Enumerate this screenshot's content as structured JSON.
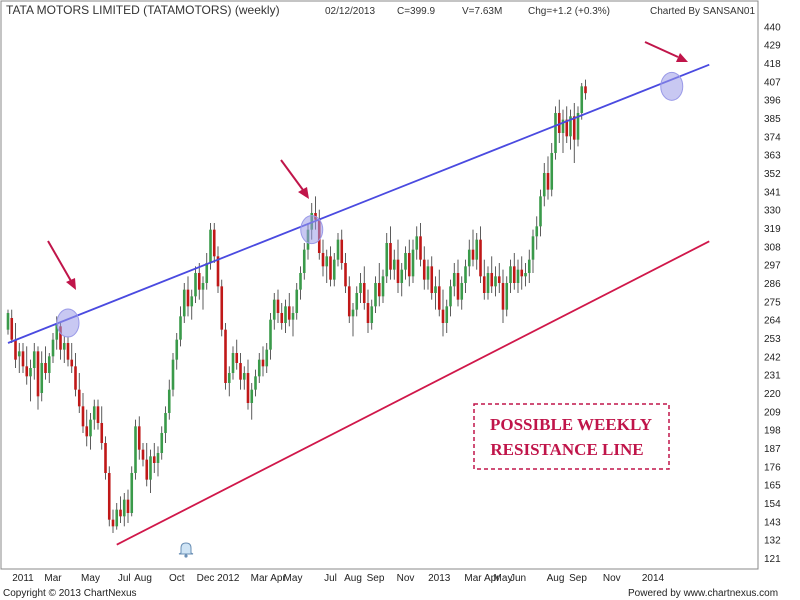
{
  "header": {
    "title": "TATA MOTORS LIMITED (TATAMOTORS) (weekly)",
    "date": "02/12/2013",
    "close": "C=399.9",
    "volume": "V=7.63M",
    "change": "Chg=+1.2 (+0.3%)",
    "charted_by": "Charted By SANSAN01"
  },
  "footer": {
    "copyright": "Copyright © 2013 ChartNexus",
    "powered_by": "Powered by www.chartnexus.com"
  },
  "annotation": {
    "line1": "POSSIBLE WEEKLY",
    "line2": "RESISTANCE LINE"
  },
  "colors": {
    "up": "#3a9a4a",
    "down": "#c01818",
    "resistance": "#4a4ae0",
    "support": "#d0174a",
    "arrow": "#c0154a",
    "highlight": "#9a9ae8"
  },
  "chart_data": {
    "type": "candlestick",
    "ylim": [
      115,
      445
    ],
    "y_ticks": [
      440,
      429,
      418,
      407,
      396,
      385,
      374,
      363,
      352,
      341,
      330,
      319,
      308,
      297,
      286,
      275,
      264,
      253,
      242,
      231,
      220,
      209,
      198,
      187,
      176,
      165,
      154,
      143,
      132,
      121
    ],
    "x_ticks": [
      "2011",
      "Mar",
      "May",
      "Jul",
      "Aug",
      "Oct",
      "Dec 2012",
      "Mar",
      "Apr",
      "May",
      "Jul",
      "Aug",
      "Sep",
      "Nov",
      "2013",
      "Mar",
      "Apr",
      "May",
      "Jun",
      "Aug",
      "Sep",
      "Nov",
      "2014"
    ],
    "x_tick_index": [
      4,
      12,
      22,
      31,
      36,
      45,
      56,
      67,
      72,
      76,
      86,
      92,
      98,
      106,
      115,
      124,
      129,
      132,
      136,
      146,
      152,
      161,
      172
    ],
    "candles": [
      {
        "o": 258,
        "h": 270,
        "l": 255,
        "c": 268
      },
      {
        "o": 265,
        "h": 270,
        "l": 250,
        "c": 252
      },
      {
        "o": 252,
        "h": 262,
        "l": 235,
        "c": 240
      },
      {
        "o": 242,
        "h": 250,
        "l": 232,
        "c": 245
      },
      {
        "o": 245,
        "h": 250,
        "l": 232,
        "c": 236
      },
      {
        "o": 236,
        "h": 248,
        "l": 225,
        "c": 230
      },
      {
        "o": 230,
        "h": 240,
        "l": 215,
        "c": 235
      },
      {
        "o": 235,
        "h": 250,
        "l": 228,
        "c": 245
      },
      {
        "o": 245,
        "h": 248,
        "l": 210,
        "c": 218
      },
      {
        "o": 220,
        "h": 245,
        "l": 215,
        "c": 238
      },
      {
        "o": 238,
        "h": 248,
        "l": 228,
        "c": 232
      },
      {
        "o": 232,
        "h": 244,
        "l": 226,
        "c": 242
      },
      {
        "o": 242,
        "h": 256,
        "l": 238,
        "c": 252
      },
      {
        "o": 252,
        "h": 266,
        "l": 246,
        "c": 262
      },
      {
        "o": 260,
        "h": 262,
        "l": 240,
        "c": 246
      },
      {
        "o": 246,
        "h": 254,
        "l": 238,
        "c": 250
      },
      {
        "o": 250,
        "h": 254,
        "l": 236,
        "c": 240
      },
      {
        "o": 240,
        "h": 250,
        "l": 232,
        "c": 236
      },
      {
        "o": 236,
        "h": 244,
        "l": 218,
        "c": 222
      },
      {
        "o": 222,
        "h": 232,
        "l": 208,
        "c": 212
      },
      {
        "o": 212,
        "h": 220,
        "l": 196,
        "c": 200
      },
      {
        "o": 200,
        "h": 210,
        "l": 188,
        "c": 194
      },
      {
        "o": 194,
        "h": 208,
        "l": 186,
        "c": 204
      },
      {
        "o": 204,
        "h": 216,
        "l": 198,
        "c": 212
      },
      {
        "o": 212,
        "h": 216,
        "l": 198,
        "c": 202
      },
      {
        "o": 202,
        "h": 212,
        "l": 186,
        "c": 190
      },
      {
        "o": 190,
        "h": 194,
        "l": 168,
        "c": 172
      },
      {
        "o": 172,
        "h": 176,
        "l": 140,
        "c": 144
      },
      {
        "o": 144,
        "h": 150,
        "l": 136,
        "c": 140
      },
      {
        "o": 140,
        "h": 154,
        "l": 138,
        "c": 150
      },
      {
        "o": 150,
        "h": 158,
        "l": 142,
        "c": 146
      },
      {
        "o": 146,
        "h": 160,
        "l": 140,
        "c": 156
      },
      {
        "o": 156,
        "h": 162,
        "l": 142,
        "c": 148
      },
      {
        "o": 148,
        "h": 176,
        "l": 146,
        "c": 172
      },
      {
        "o": 172,
        "h": 204,
        "l": 168,
        "c": 200
      },
      {
        "o": 200,
        "h": 206,
        "l": 180,
        "c": 186
      },
      {
        "o": 186,
        "h": 190,
        "l": 176,
        "c": 180
      },
      {
        "o": 180,
        "h": 190,
        "l": 164,
        "c": 168
      },
      {
        "o": 168,
        "h": 186,
        "l": 160,
        "c": 182
      },
      {
        "o": 182,
        "h": 190,
        "l": 172,
        "c": 178
      },
      {
        "o": 178,
        "h": 188,
        "l": 170,
        "c": 184
      },
      {
        "o": 184,
        "h": 200,
        "l": 180,
        "c": 196
      },
      {
        "o": 196,
        "h": 212,
        "l": 190,
        "c": 208
      },
      {
        "o": 208,
        "h": 228,
        "l": 204,
        "c": 222
      },
      {
        "o": 222,
        "h": 244,
        "l": 218,
        "c": 240
      },
      {
        "o": 240,
        "h": 256,
        "l": 234,
        "c": 252
      },
      {
        "o": 252,
        "h": 272,
        "l": 248,
        "c": 266
      },
      {
        "o": 266,
        "h": 286,
        "l": 262,
        "c": 282
      },
      {
        "o": 282,
        "h": 290,
        "l": 266,
        "c": 272
      },
      {
        "o": 272,
        "h": 282,
        "l": 264,
        "c": 278
      },
      {
        "o": 278,
        "h": 296,
        "l": 274,
        "c": 292
      },
      {
        "o": 292,
        "h": 298,
        "l": 276,
        "c": 282
      },
      {
        "o": 282,
        "h": 290,
        "l": 270,
        "c": 286
      },
      {
        "o": 286,
        "h": 304,
        "l": 282,
        "c": 298
      },
      {
        "o": 298,
        "h": 322,
        "l": 294,
        "c": 318
      },
      {
        "o": 318,
        "h": 322,
        "l": 298,
        "c": 302
      },
      {
        "o": 302,
        "h": 308,
        "l": 280,
        "c": 284
      },
      {
        "o": 284,
        "h": 288,
        "l": 254,
        "c": 258
      },
      {
        "o": 258,
        "h": 262,
        "l": 222,
        "c": 226
      },
      {
        "o": 226,
        "h": 236,
        "l": 218,
        "c": 232
      },
      {
        "o": 232,
        "h": 248,
        "l": 228,
        "c": 244
      },
      {
        "o": 244,
        "h": 252,
        "l": 234,
        "c": 238
      },
      {
        "o": 238,
        "h": 244,
        "l": 222,
        "c": 228
      },
      {
        "o": 228,
        "h": 236,
        "l": 222,
        "c": 232
      },
      {
        "o": 232,
        "h": 240,
        "l": 210,
        "c": 214
      },
      {
        "o": 214,
        "h": 226,
        "l": 204,
        "c": 222
      },
      {
        "o": 222,
        "h": 234,
        "l": 218,
        "c": 230
      },
      {
        "o": 230,
        "h": 244,
        "l": 226,
        "c": 240
      },
      {
        "o": 240,
        "h": 248,
        "l": 230,
        "c": 236
      },
      {
        "o": 236,
        "h": 250,
        "l": 232,
        "c": 246
      },
      {
        "o": 246,
        "h": 268,
        "l": 240,
        "c": 264
      },
      {
        "o": 264,
        "h": 280,
        "l": 258,
        "c": 276
      },
      {
        "o": 276,
        "h": 282,
        "l": 262,
        "c": 268
      },
      {
        "o": 268,
        "h": 274,
        "l": 258,
        "c": 262
      },
      {
        "o": 262,
        "h": 276,
        "l": 256,
        "c": 272
      },
      {
        "o": 272,
        "h": 280,
        "l": 260,
        "c": 264
      },
      {
        "o": 264,
        "h": 272,
        "l": 254,
        "c": 268
      },
      {
        "o": 268,
        "h": 286,
        "l": 264,
        "c": 282
      },
      {
        "o": 282,
        "h": 296,
        "l": 276,
        "c": 292
      },
      {
        "o": 292,
        "h": 310,
        "l": 288,
        "c": 306
      },
      {
        "o": 306,
        "h": 322,
        "l": 300,
        "c": 318
      },
      {
        "o": 318,
        "h": 334,
        "l": 312,
        "c": 328
      },
      {
        "o": 328,
        "h": 338,
        "l": 318,
        "c": 324
      },
      {
        "o": 324,
        "h": 330,
        "l": 300,
        "c": 304
      },
      {
        "o": 304,
        "h": 312,
        "l": 290,
        "c": 296
      },
      {
        "o": 296,
        "h": 306,
        "l": 286,
        "c": 302
      },
      {
        "o": 302,
        "h": 308,
        "l": 284,
        "c": 288
      },
      {
        "o": 288,
        "h": 304,
        "l": 284,
        "c": 300
      },
      {
        "o": 300,
        "h": 316,
        "l": 296,
        "c": 312
      },
      {
        "o": 312,
        "h": 318,
        "l": 294,
        "c": 298
      },
      {
        "o": 298,
        "h": 304,
        "l": 280,
        "c": 284
      },
      {
        "o": 284,
        "h": 290,
        "l": 262,
        "c": 266
      },
      {
        "o": 266,
        "h": 274,
        "l": 254,
        "c": 270
      },
      {
        "o": 270,
        "h": 284,
        "l": 266,
        "c": 280
      },
      {
        "o": 280,
        "h": 292,
        "l": 274,
        "c": 286
      },
      {
        "o": 286,
        "h": 296,
        "l": 270,
        "c": 274
      },
      {
        "o": 274,
        "h": 282,
        "l": 256,
        "c": 262
      },
      {
        "o": 262,
        "h": 276,
        "l": 258,
        "c": 272
      },
      {
        "o": 272,
        "h": 290,
        "l": 268,
        "c": 286
      },
      {
        "o": 286,
        "h": 298,
        "l": 272,
        "c": 278
      },
      {
        "o": 278,
        "h": 294,
        "l": 274,
        "c": 290
      },
      {
        "o": 290,
        "h": 316,
        "l": 286,
        "c": 310
      },
      {
        "o": 310,
        "h": 320,
        "l": 288,
        "c": 294
      },
      {
        "o": 294,
        "h": 306,
        "l": 288,
        "c": 300
      },
      {
        "o": 300,
        "h": 312,
        "l": 280,
        "c": 286
      },
      {
        "o": 286,
        "h": 298,
        "l": 278,
        "c": 294
      },
      {
        "o": 294,
        "h": 308,
        "l": 288,
        "c": 304
      },
      {
        "o": 304,
        "h": 312,
        "l": 284,
        "c": 290
      },
      {
        "o": 290,
        "h": 312,
        "l": 286,
        "c": 306
      },
      {
        "o": 306,
        "h": 320,
        "l": 300,
        "c": 314
      },
      {
        "o": 314,
        "h": 322,
        "l": 296,
        "c": 300
      },
      {
        "o": 300,
        "h": 308,
        "l": 282,
        "c": 288
      },
      {
        "o": 288,
        "h": 300,
        "l": 282,
        "c": 296
      },
      {
        "o": 296,
        "h": 302,
        "l": 276,
        "c": 280
      },
      {
        "o": 280,
        "h": 290,
        "l": 270,
        "c": 284
      },
      {
        "o": 284,
        "h": 294,
        "l": 266,
        "c": 270
      },
      {
        "o": 270,
        "h": 282,
        "l": 254,
        "c": 262
      },
      {
        "o": 262,
        "h": 276,
        "l": 256,
        "c": 272
      },
      {
        "o": 272,
        "h": 288,
        "l": 266,
        "c": 284
      },
      {
        "o": 284,
        "h": 298,
        "l": 278,
        "c": 292
      },
      {
        "o": 292,
        "h": 300,
        "l": 272,
        "c": 276
      },
      {
        "o": 276,
        "h": 290,
        "l": 270,
        "c": 286
      },
      {
        "o": 286,
        "h": 300,
        "l": 280,
        "c": 296
      },
      {
        "o": 296,
        "h": 312,
        "l": 290,
        "c": 306
      },
      {
        "o": 306,
        "h": 318,
        "l": 296,
        "c": 300
      },
      {
        "o": 300,
        "h": 316,
        "l": 294,
        "c": 312
      },
      {
        "o": 312,
        "h": 320,
        "l": 286,
        "c": 290
      },
      {
        "o": 290,
        "h": 300,
        "l": 276,
        "c": 280
      },
      {
        "o": 280,
        "h": 296,
        "l": 276,
        "c": 292
      },
      {
        "o": 292,
        "h": 302,
        "l": 280,
        "c": 284
      },
      {
        "o": 284,
        "h": 296,
        "l": 278,
        "c": 290
      },
      {
        "o": 290,
        "h": 298,
        "l": 280,
        "c": 286
      },
      {
        "o": 286,
        "h": 294,
        "l": 262,
        "c": 270
      },
      {
        "o": 270,
        "h": 290,
        "l": 266,
        "c": 286
      },
      {
        "o": 286,
        "h": 300,
        "l": 280,
        "c": 296
      },
      {
        "o": 296,
        "h": 304,
        "l": 282,
        "c": 286
      },
      {
        "o": 286,
        "h": 300,
        "l": 280,
        "c": 294
      },
      {
        "o": 294,
        "h": 302,
        "l": 282,
        "c": 290
      },
      {
        "o": 290,
        "h": 298,
        "l": 284,
        "c": 292
      },
      {
        "o": 292,
        "h": 306,
        "l": 286,
        "c": 300
      },
      {
        "o": 300,
        "h": 318,
        "l": 292,
        "c": 314
      },
      {
        "o": 314,
        "h": 326,
        "l": 306,
        "c": 320
      },
      {
        "o": 320,
        "h": 342,
        "l": 314,
        "c": 338
      },
      {
        "o": 338,
        "h": 358,
        "l": 332,
        "c": 352
      },
      {
        "o": 352,
        "h": 362,
        "l": 336,
        "c": 342
      },
      {
        "o": 342,
        "h": 370,
        "l": 338,
        "c": 364
      },
      {
        "o": 364,
        "h": 392,
        "l": 360,
        "c": 388
      },
      {
        "o": 388,
        "h": 396,
        "l": 370,
        "c": 376
      },
      {
        "o": 376,
        "h": 390,
        "l": 364,
        "c": 384
      },
      {
        "o": 384,
        "h": 392,
        "l": 370,
        "c": 374
      },
      {
        "o": 374,
        "h": 390,
        "l": 366,
        "c": 386
      },
      {
        "o": 386,
        "h": 394,
        "l": 358,
        "c": 372
      },
      {
        "o": 372,
        "h": 392,
        "l": 368,
        "c": 388
      },
      {
        "o": 388,
        "h": 406,
        "l": 384,
        "c": 404
      },
      {
        "o": 404,
        "h": 408,
        "l": 396,
        "c": 399.9
      }
    ],
    "trendlines": [
      {
        "name": "resistance",
        "from": {
          "i": 0,
          "y": 250
        },
        "to": {
          "i": 187,
          "y": 417
        }
      },
      {
        "name": "support",
        "from": {
          "i": 29,
          "y": 129
        },
        "to": {
          "i": 187,
          "y": 311
        }
      }
    ],
    "highlight_points": [
      {
        "i": 16,
        "y": 262
      },
      {
        "i": 81,
        "y": 318
      },
      {
        "i": 177,
        "y": 404
      }
    ]
  }
}
